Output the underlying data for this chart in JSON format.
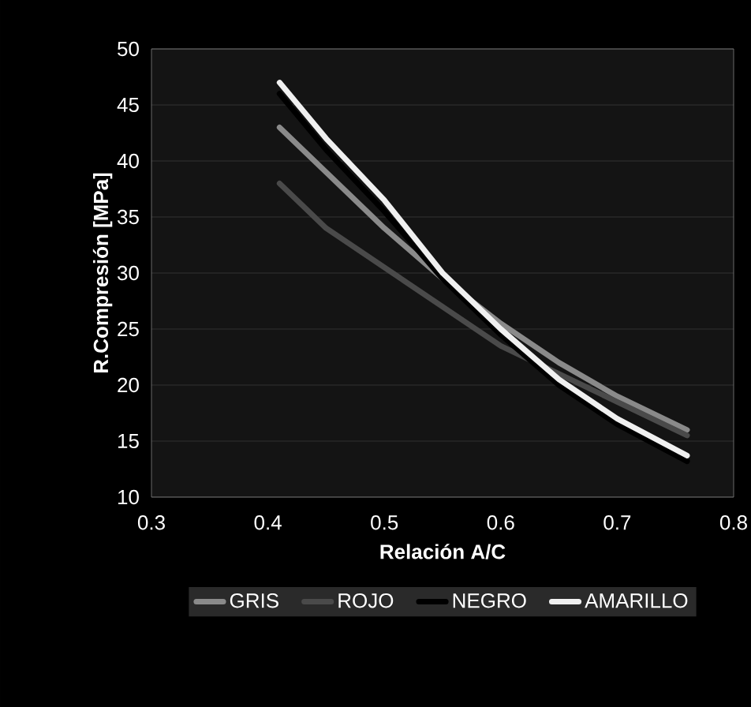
{
  "chart_data": {
    "type": "line",
    "xlabel": "Relación A/C",
    "ylabel": "R.Compresión [MPa]",
    "x": [
      0.41,
      0.45,
      0.5,
      0.55,
      0.6,
      0.65,
      0.7,
      0.76
    ],
    "series": [
      {
        "name": "GRIS",
        "color": "#8a8a8a",
        "values": [
          43,
          39,
          34,
          29.5,
          25.5,
          22,
          19,
          16
        ]
      },
      {
        "name": "ROJO",
        "color": "#4a4a4a",
        "values": [
          38,
          34,
          30.5,
          27,
          23.5,
          21,
          18.5,
          15.5
        ]
      },
      {
        "name": "NEGRO",
        "color": "#000000",
        "values": [
          46,
          41,
          35.5,
          29.5,
          24.5,
          20,
          16.5,
          13.2
        ]
      },
      {
        "name": "AMARILLO",
        "color": "#f0f0f0",
        "values": [
          47,
          42,
          36.5,
          30,
          25,
          20.5,
          17,
          13.7
        ]
      }
    ],
    "xlim": [
      0.3,
      0.8
    ],
    "xticks": [
      0.3,
      0.4,
      0.5,
      0.6,
      0.7,
      0.8
    ],
    "ylim": [
      10,
      50
    ],
    "yticks": [
      10,
      15,
      20,
      25,
      30,
      35,
      40,
      45,
      50
    ],
    "grid": "y",
    "legend": "bottom",
    "marker": "none",
    "line_style": "solid"
  }
}
